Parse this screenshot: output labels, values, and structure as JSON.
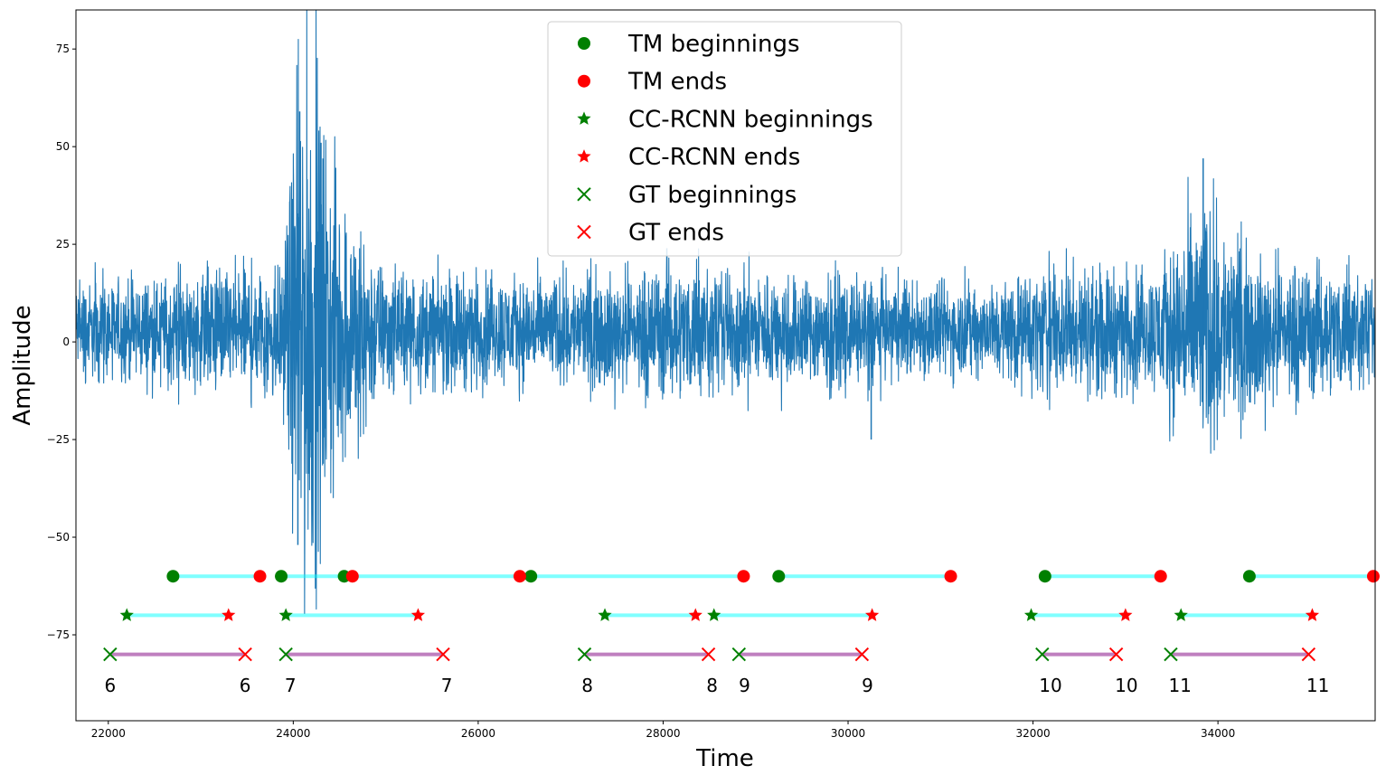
{
  "chart_data": {
    "type": "line",
    "xlabel": "Time",
    "ylabel": "Amplitude",
    "xlim": [
      21650,
      35700
    ],
    "ylim": [
      -97,
      85
    ],
    "x_ticks": [
      22000,
      24000,
      26000,
      28000,
      30000,
      32000,
      34000
    ],
    "x_tick_labels": [
      "22000",
      "24000",
      "26000",
      "28000",
      "30000",
      "32000",
      "34000"
    ],
    "y_ticks": [
      75,
      50,
      25,
      0,
      -25,
      -50,
      -75
    ],
    "y_tick_labels": [
      "75",
      "50",
      "25",
      "0",
      "−25",
      "−50",
      "−75"
    ],
    "signal": {
      "name": "seismic signal",
      "color": "#1f77b4",
      "x_start": 21650,
      "x_end": 35700,
      "baseline": 3,
      "envelope": [
        {
          "x": 21650,
          "a": 7
        },
        {
          "x": 23300,
          "a": 9
        },
        {
          "x": 23900,
          "a": 12
        },
        {
          "x": 24100,
          "a": 45
        },
        {
          "x": 24500,
          "a": 22
        },
        {
          "x": 25000,
          "a": 9
        },
        {
          "x": 27000,
          "a": 8
        },
        {
          "x": 28000,
          "a": 10
        },
        {
          "x": 29000,
          "a": 9
        },
        {
          "x": 31500,
          "a": 7
        },
        {
          "x": 32200,
          "a": 10
        },
        {
          "x": 33300,
          "a": 9
        },
        {
          "x": 33800,
          "a": 20
        },
        {
          "x": 34300,
          "a": 12
        },
        {
          "x": 35700,
          "a": 8
        }
      ],
      "notable_peaks": [
        {
          "x": 24070,
          "y": 59
        },
        {
          "x": 24050,
          "y": -52
        },
        {
          "x": 24300,
          "y": 51
        },
        {
          "x": 33840,
          "y": 47
        },
        {
          "x": 28040,
          "y": 24
        },
        {
          "x": 30250,
          "y": -25
        }
      ]
    },
    "series": [
      {
        "name": "TM beginnings",
        "marker": "circle",
        "color": "#008000",
        "y": -60,
        "x": [
          22700,
          23870,
          24550,
          26570,
          29250,
          32130,
          34340
        ]
      },
      {
        "name": "TM ends",
        "marker": "circle",
        "color": "#ff0000",
        "y": -60,
        "x": [
          23640,
          24640,
          26450,
          28870,
          31110,
          33380,
          35680
        ]
      },
      {
        "name": "CC-RCNN beginnings",
        "marker": "star",
        "color": "#008000",
        "y": -70,
        "x": [
          22200,
          23920,
          27370,
          28550,
          31980,
          33600
        ]
      },
      {
        "name": "CC-RCNN ends",
        "marker": "star",
        "color": "#ff0000",
        "y": -70,
        "x": [
          23300,
          25350,
          28350,
          30260,
          33000,
          35020
        ]
      },
      {
        "name": "GT beginnings",
        "marker": "x",
        "color": "#008000",
        "y": -80,
        "x": [
          22020,
          23920,
          27150,
          28820,
          32100,
          33490
        ]
      },
      {
        "name": "GT ends",
        "marker": "x",
        "color": "#ff0000",
        "y": -80,
        "x": [
          23480,
          25620,
          28490,
          30150,
          32900,
          34980
        ]
      }
    ],
    "intervals": [
      {
        "row": "TM",
        "color": "#00ffff",
        "y": -60,
        "segments": [
          [
            22700,
            23640
          ],
          [
            23870,
            24640
          ],
          [
            24550,
            26450
          ],
          [
            26570,
            28870
          ],
          [
            29250,
            31110
          ],
          [
            32130,
            33380
          ],
          [
            34340,
            35680
          ]
        ]
      },
      {
        "row": "CC-RCNN",
        "color": "#00ffff",
        "y": -70,
        "segments": [
          [
            22200,
            23300
          ],
          [
            23920,
            25350
          ],
          [
            27370,
            28350
          ],
          [
            28550,
            30260
          ],
          [
            31980,
            33000
          ],
          [
            33600,
            35020
          ]
        ]
      },
      {
        "row": "GT",
        "color": "#800080",
        "y": -80,
        "segments": [
          [
            22020,
            23480
          ],
          [
            23920,
            25620
          ],
          [
            27150,
            28490
          ],
          [
            28820,
            30150
          ],
          [
            32100,
            32900
          ],
          [
            33490,
            34980
          ]
        ]
      }
    ],
    "event_labels": [
      {
        "text": "6",
        "x": 22020
      },
      {
        "text": "6",
        "x": 23480
      },
      {
        "text": "7",
        "x": 23970
      },
      {
        "text": "7",
        "x": 25660
      },
      {
        "text": "8",
        "x": 27180
      },
      {
        "text": "8",
        "x": 28530
      },
      {
        "text": "9",
        "x": 28880
      },
      {
        "text": "9",
        "x": 30210
      },
      {
        "text": "10",
        "x": 32190
      },
      {
        "text": "10",
        "x": 33010
      },
      {
        "text": "11",
        "x": 33590
      },
      {
        "text": "11",
        "x": 35080
      }
    ],
    "event_label_y": -88,
    "legend": {
      "placement": "top-center",
      "entries": [
        "TM beginnings",
        "TM ends",
        "CC-RCNN beginnings",
        "CC-RCNN ends",
        "GT beginnings",
        "GT ends"
      ]
    }
  }
}
